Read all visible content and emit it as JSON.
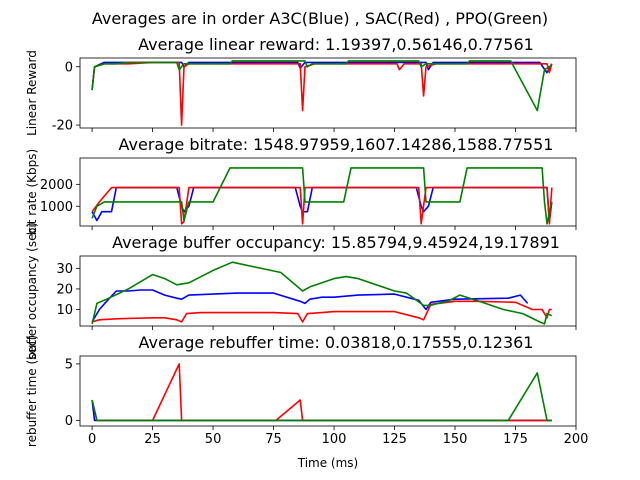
{
  "suptitle": "Averages are in order A3C(Blue) , SAC(Red) , PPO(Green)",
  "xlabel": "Time (ms)",
  "x_ticks": [
    0,
    25,
    50,
    75,
    100,
    125,
    150,
    175,
    200
  ],
  "colors": {
    "A3C": "#0000ff",
    "SAC": "#ff0000",
    "PPO": "#008000"
  },
  "chart_data": [
    {
      "type": "line",
      "title": "Average linear reward: 1.19397,0.56146,0.77561",
      "ylabel": "Linear Reward",
      "xlim": [
        -5,
        200
      ],
      "ylim": [
        -21,
        3
      ],
      "y_ticks": [
        0,
        -20
      ],
      "series": [
        {
          "color": "blue",
          "points": [
            [
              0,
              -8
            ],
            [
              1,
              0
            ],
            [
              5,
              1.5
            ],
            [
              25,
              1.5
            ],
            [
              37,
              1.5
            ],
            [
              38,
              0
            ],
            [
              40,
              1.5
            ],
            [
              85,
              1.5
            ],
            [
              86,
              -0.5
            ],
            [
              88,
              1.5
            ],
            [
              110,
              1.5
            ],
            [
              125,
              1.5
            ],
            [
              138,
              1.5
            ],
            [
              139,
              -1
            ],
            [
              141,
              1.5
            ],
            [
              185,
              1.5
            ],
            [
              188,
              -2
            ],
            [
              190,
              1
            ]
          ]
        },
        {
          "color": "red",
          "points": [
            [
              0,
              -8
            ],
            [
              1,
              0
            ],
            [
              5,
              1
            ],
            [
              15,
              1
            ],
            [
              25,
              1.5
            ],
            [
              36,
              1.5
            ],
            [
              37,
              -20
            ],
            [
              38,
              0
            ],
            [
              40,
              1
            ],
            [
              76,
              1
            ],
            [
              86,
              1
            ],
            [
              87,
              -15
            ],
            [
              88,
              0
            ],
            [
              92,
              1
            ],
            [
              104,
              1
            ],
            [
              121,
              1
            ],
            [
              126,
              1
            ],
            [
              127,
              -1
            ],
            [
              129,
              1
            ],
            [
              136,
              1
            ],
            [
              137,
              -10
            ],
            [
              138,
              0
            ],
            [
              142,
              1
            ],
            [
              188,
              1
            ],
            [
              189,
              -2
            ],
            [
              190,
              1
            ]
          ]
        },
        {
          "color": "green",
          "points": [
            [
              0,
              -8
            ],
            [
              1,
              0
            ],
            [
              5,
              1
            ],
            [
              10,
              1
            ],
            [
              15,
              1.5
            ],
            [
              25,
              1.5
            ],
            [
              35,
              1.5
            ],
            [
              36,
              -1
            ],
            [
              38,
              1
            ],
            [
              57,
              1
            ],
            [
              58,
              2
            ],
            [
              77,
              2
            ],
            [
              88,
              2
            ],
            [
              89,
              0
            ],
            [
              91,
              1
            ],
            [
              105,
              1
            ],
            [
              106,
              2
            ],
            [
              126,
              2
            ],
            [
              135,
              2
            ],
            [
              136,
              0
            ],
            [
              138,
              1
            ],
            [
              155,
              1
            ],
            [
              156,
              2
            ],
            [
              173,
              2
            ],
            [
              184,
              -15
            ],
            [
              187,
              -1
            ],
            [
              190,
              0.5
            ]
          ]
        }
      ]
    },
    {
      "type": "line",
      "title": "Average bitrate: 1548.97959,1607.14286,1588.77551",
      "ylabel": "bit rate (Kbps)",
      "xlim": [
        -5,
        200
      ],
      "ylim": [
        100,
        3200
      ],
      "y_ticks": [
        1000,
        2000
      ],
      "series": [
        {
          "color": "blue",
          "points": [
            [
              0,
              750
            ],
            [
              2,
              350
            ],
            [
              4,
              750
            ],
            [
              8,
              750
            ],
            [
              10,
              1850
            ],
            [
              35,
              1850
            ],
            [
              37,
              1000
            ],
            [
              38,
              750
            ],
            [
              40,
              1000
            ],
            [
              42,
              1850
            ],
            [
              84,
              1850
            ],
            [
              86,
              1000
            ],
            [
              87,
              750
            ],
            [
              89,
              750
            ],
            [
              91,
              1850
            ],
            [
              106,
              1850
            ],
            [
              130,
              1850
            ],
            [
              134,
              1850
            ],
            [
              136,
              1000
            ],
            [
              137,
              750
            ],
            [
              139,
              1000
            ],
            [
              141,
              1850
            ],
            [
              188,
              1850
            ],
            [
              189,
              300
            ],
            [
              190,
              1200
            ]
          ]
        },
        {
          "color": "red",
          "points": [
            [
              0,
              750
            ],
            [
              3,
              1200
            ],
            [
              8,
              1850
            ],
            [
              20,
              1850
            ],
            [
              36,
              1850
            ],
            [
              37,
              200
            ],
            [
              38,
              300
            ],
            [
              40,
              1850
            ],
            [
              52,
              1850
            ],
            [
              86,
              1850
            ],
            [
              87,
              200
            ],
            [
              88,
              1850
            ],
            [
              110,
              1850
            ],
            [
              127,
              1850
            ],
            [
              129,
              1850
            ],
            [
              135,
              1850
            ],
            [
              136,
              200
            ],
            [
              138,
              1850
            ],
            [
              155,
              1850
            ],
            [
              182,
              1850
            ],
            [
              186,
              1850
            ],
            [
              188,
              1850
            ],
            [
              189,
              200
            ],
            [
              190,
              1850
            ]
          ]
        },
        {
          "color": "green",
          "points": [
            [
              0,
              450
            ],
            [
              2,
              1000
            ],
            [
              5,
              1200
            ],
            [
              20,
              1200
            ],
            [
              30,
              1200
            ],
            [
              37,
              1200
            ],
            [
              38,
              350
            ],
            [
              40,
              1200
            ],
            [
              50,
              1200
            ],
            [
              57,
              2750
            ],
            [
              87,
              2750
            ],
            [
              88,
              1200
            ],
            [
              91,
              1200
            ],
            [
              104,
              1200
            ],
            [
              107,
              2750
            ],
            [
              137,
              2750
            ],
            [
              138,
              1200
            ],
            [
              141,
              1200
            ],
            [
              152,
              1200
            ],
            [
              155,
              2750
            ],
            [
              186,
              2750
            ],
            [
              187,
              1200
            ],
            [
              188,
              200
            ],
            [
              190,
              1200
            ]
          ]
        }
      ]
    },
    {
      "type": "line",
      "title": "Average buffer occupancy: 15.85794,9.45924,19.17891",
      "ylabel": "buffer occupancy (sec)",
      "xlim": [
        -5,
        200
      ],
      "ylim": [
        2,
        36
      ],
      "y_ticks": [
        10,
        20,
        30
      ],
      "series": [
        {
          "color": "blue",
          "points": [
            [
              0,
              4
            ],
            [
              3,
              10
            ],
            [
              6,
              14
            ],
            [
              10,
              19
            ],
            [
              15,
              19
            ],
            [
              20,
              19.5
            ],
            [
              25,
              19.5
            ],
            [
              30,
              17
            ],
            [
              35,
              15.5
            ],
            [
              37,
              15
            ],
            [
              40,
              17
            ],
            [
              50,
              17.5
            ],
            [
              60,
              18
            ],
            [
              75,
              18
            ],
            [
              86,
              14
            ],
            [
              88,
              13
            ],
            [
              90,
              15
            ],
            [
              95,
              16
            ],
            [
              100,
              16
            ],
            [
              110,
              17
            ],
            [
              125,
              17.5
            ],
            [
              135,
              14.5
            ],
            [
              138,
              10
            ],
            [
              140,
              13.5
            ],
            [
              150,
              15
            ],
            [
              172,
              15.5
            ],
            [
              177,
              17
            ],
            [
              180,
              13
            ]
          ]
        },
        {
          "color": "red",
          "points": [
            [
              0,
              4
            ],
            [
              3,
              5
            ],
            [
              10,
              5.5
            ],
            [
              25,
              6
            ],
            [
              30,
              6
            ],
            [
              35,
              5
            ],
            [
              37,
              4
            ],
            [
              39,
              8
            ],
            [
              45,
              8.5
            ],
            [
              55,
              8.5
            ],
            [
              65,
              8.5
            ],
            [
              75,
              8.5
            ],
            [
              85,
              8
            ],
            [
              87,
              4
            ],
            [
              89,
              8
            ],
            [
              95,
              8.5
            ],
            [
              100,
              9
            ],
            [
              110,
              9
            ],
            [
              120,
              9
            ],
            [
              125,
              9
            ],
            [
              135,
              6
            ],
            [
              137,
              5
            ],
            [
              140,
              12.5
            ],
            [
              150,
              14
            ],
            [
              160,
              14
            ],
            [
              175,
              13.5
            ],
            [
              182,
              10
            ],
            [
              186,
              10
            ],
            [
              188,
              6
            ],
            [
              189,
              10
            ],
            [
              190,
              10
            ]
          ]
        },
        {
          "color": "green",
          "points": [
            [
              0,
              3
            ],
            [
              2,
              13
            ],
            [
              6,
              15
            ],
            [
              15,
              20
            ],
            [
              25,
              27
            ],
            [
              30,
              25
            ],
            [
              35,
              22
            ],
            [
              40,
              23
            ],
            [
              50,
              29
            ],
            [
              58,
              33
            ],
            [
              70,
              30
            ],
            [
              78,
              28
            ],
            [
              85,
              21
            ],
            [
              87,
              19
            ],
            [
              90,
              21
            ],
            [
              95,
              23
            ],
            [
              100,
              25
            ],
            [
              105,
              26
            ],
            [
              110,
              25
            ],
            [
              125,
              19
            ],
            [
              130,
              18
            ],
            [
              137,
              12
            ],
            [
              140,
              12
            ],
            [
              143,
              13
            ],
            [
              147,
              14
            ],
            [
              152,
              17
            ],
            [
              160,
              14
            ],
            [
              170,
              10
            ],
            [
              178,
              8
            ],
            [
              185,
              4
            ],
            [
              187,
              3
            ],
            [
              188,
              8
            ],
            [
              190,
              7
            ]
          ]
        }
      ]
    },
    {
      "type": "line",
      "title": "Average rebuffer time: 0.03818,0.17555,0.12361",
      "ylabel": "rebuffer time (sec)",
      "xlim": [
        -5,
        200
      ],
      "ylim": [
        -0.5,
        5.7
      ],
      "y_ticks": [
        0,
        5
      ],
      "series": [
        {
          "color": "blue",
          "points": [
            [
              0,
              1.8
            ],
            [
              1,
              0
            ],
            [
              190,
              0
            ]
          ]
        },
        {
          "color": "red",
          "points": [
            [
              0,
              1.8
            ],
            [
              2,
              0
            ],
            [
              25,
              0
            ],
            [
              36,
              5
            ],
            [
              37,
              0
            ],
            [
              76,
              0
            ],
            [
              86,
              1.8
            ],
            [
              87,
              0
            ],
            [
              190,
              0
            ]
          ]
        },
        {
          "color": "green",
          "points": [
            [
              0,
              1.8
            ],
            [
              2,
              0
            ],
            [
              172,
              0
            ],
            [
              184,
              4.2
            ],
            [
              188,
              0
            ],
            [
              190,
              0
            ]
          ]
        }
      ]
    }
  ]
}
